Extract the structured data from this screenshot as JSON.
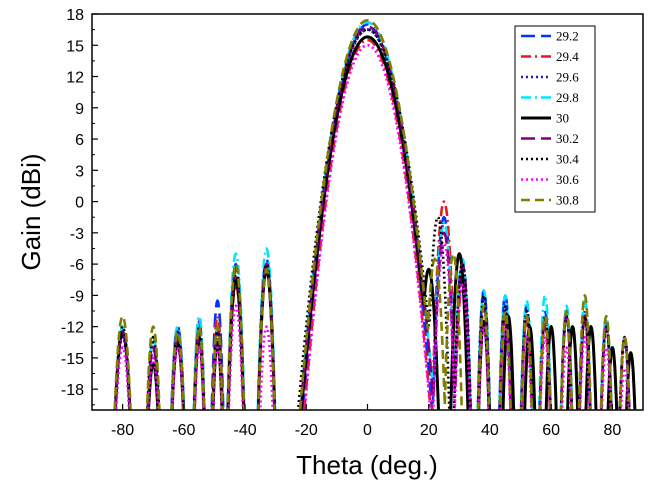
{
  "chart_data": {
    "type": "line",
    "title": "",
    "xlabel": "Theta (deg.)",
    "ylabel": "Gain (dBi)",
    "xlim": [
      -90,
      90
    ],
    "ylim": [
      -20,
      18
    ],
    "xticks": [
      -80,
      -60,
      -40,
      -20,
      0,
      20,
      40,
      60,
      80
    ],
    "yticks": [
      18,
      15,
      12,
      9,
      6,
      3,
      0,
      -3,
      -6,
      -9,
      -12,
      -15,
      -18
    ],
    "grid": false,
    "legend_position": "top-right",
    "series": [
      {
        "name": "29.2",
        "color": "#0033ff",
        "dash": "long-dash",
        "peak": 17.0,
        "beamwidth": 12,
        "sidelobes": [
          [
            -80,
            -12.5,
            3
          ],
          [
            -70,
            -14,
            2.5
          ],
          [
            -62,
            -12,
            2.5
          ],
          [
            -55,
            -11.5,
            2
          ],
          [
            -49,
            -9.5,
            2
          ],
          [
            -43,
            -6,
            2.5
          ],
          [
            -33,
            -5.5,
            2.5
          ],
          [
            25,
            -1.5,
            3
          ],
          [
            31,
            -7,
            2.5
          ],
          [
            38,
            -8.5,
            2
          ],
          [
            45,
            -9,
            2
          ],
          [
            52,
            -10,
            2
          ],
          [
            58,
            -10.5,
            2
          ],
          [
            65,
            -10.5,
            2
          ],
          [
            71,
            -11,
            2
          ],
          [
            78,
            -11.5,
            2
          ],
          [
            84,
            -13,
            2
          ]
        ]
      },
      {
        "name": "29.4",
        "color": "#e41a1c",
        "dash": "dash-dot",
        "peak": 15.5,
        "beamwidth": 12,
        "sidelobes": [
          [
            -80,
            -12,
            3
          ],
          [
            -70,
            -13,
            2.5
          ],
          [
            -62,
            -12,
            2.5
          ],
          [
            -55,
            -11,
            2
          ],
          [
            -49,
            -11,
            2
          ],
          [
            -43,
            -8,
            2.5
          ],
          [
            -33,
            -6,
            2.5
          ],
          [
            25,
            0,
            3
          ],
          [
            31,
            -8,
            2.5
          ],
          [
            38,
            -10,
            2
          ],
          [
            45,
            -11,
            2
          ],
          [
            52,
            -11.5,
            2
          ],
          [
            58,
            -12,
            2
          ],
          [
            65,
            -11,
            2
          ],
          [
            71,
            -11.5,
            2
          ],
          [
            78,
            -12,
            2
          ],
          [
            84,
            -13,
            2
          ]
        ]
      },
      {
        "name": "29.6",
        "color": "#1a1ad6",
        "dash": "dot",
        "peak": 16.5,
        "beamwidth": 12.5,
        "sidelobes": [
          [
            -80,
            -13,
            3
          ],
          [
            -70,
            -13.5,
            2.5
          ],
          [
            -62,
            -12.5,
            2.5
          ],
          [
            -55,
            -12,
            2
          ],
          [
            -49,
            -12,
            2
          ],
          [
            -43,
            -7.5,
            2.5
          ],
          [
            -33,
            -6.5,
            2.5
          ],
          [
            25,
            -2,
            3
          ],
          [
            31,
            -6,
            2.5
          ],
          [
            38,
            -9,
            2
          ],
          [
            45,
            -10,
            2
          ],
          [
            52,
            -10,
            2
          ],
          [
            58,
            -11,
            2
          ],
          [
            65,
            -11,
            2
          ],
          [
            71,
            -10.5,
            2
          ],
          [
            78,
            -12,
            2
          ],
          [
            84,
            -13.5,
            2
          ]
        ]
      },
      {
        "name": "29.8",
        "color": "#00e5ff",
        "dash": "dash-dot",
        "peak": 17.2,
        "beamwidth": 12.5,
        "sidelobes": [
          [
            -80,
            -12,
            3
          ],
          [
            -70,
            -13,
            2.5
          ],
          [
            -62,
            -12,
            2.5
          ],
          [
            -55,
            -11,
            2
          ],
          [
            -49,
            -12,
            2
          ],
          [
            -43,
            -5,
            2.5
          ],
          [
            -33,
            -4.5,
            2.5
          ],
          [
            25,
            -2,
            3
          ],
          [
            31,
            -5.5,
            2.5
          ],
          [
            38,
            -8.5,
            2
          ],
          [
            45,
            -9,
            2
          ],
          [
            52,
            -9.5,
            2
          ],
          [
            58,
            -9,
            2
          ],
          [
            65,
            -10,
            2
          ],
          [
            71,
            -9.5,
            2
          ],
          [
            78,
            -11,
            2
          ],
          [
            84,
            -13,
            2
          ]
        ]
      },
      {
        "name": "30",
        "color": "#000000",
        "dash": "solid",
        "peak": 15.8,
        "beamwidth": 12.5,
        "sidelobes": [
          [
            -80,
            -12.5,
            3
          ],
          [
            -70,
            -15.5,
            2.5
          ],
          [
            -62,
            -13.5,
            2.5
          ],
          [
            -55,
            -13,
            2
          ],
          [
            -49,
            -13.5,
            2
          ],
          [
            -43,
            -7.5,
            2.5
          ],
          [
            -33,
            -6.5,
            2.5
          ],
          [
            20,
            -6.5,
            3
          ],
          [
            30,
            -5,
            2.5
          ],
          [
            38,
            -11.5,
            2
          ],
          [
            46,
            -11,
            2
          ],
          [
            53,
            -12,
            2
          ],
          [
            60,
            -12,
            2
          ],
          [
            67,
            -12,
            2
          ],
          [
            73,
            -12,
            2
          ],
          [
            80,
            -14,
            2
          ],
          [
            86,
            -14.5,
            2
          ]
        ]
      },
      {
        "name": "30.2",
        "color": "#800080",
        "dash": "long-dash",
        "peak": 16.8,
        "beamwidth": 12.5,
        "sidelobes": [
          [
            -80,
            -12.5,
            3
          ],
          [
            -70,
            -14,
            2.5
          ],
          [
            -62,
            -13,
            2.5
          ],
          [
            -55,
            -12.5,
            2
          ],
          [
            -49,
            -12,
            2
          ],
          [
            -43,
            -6.5,
            2.5
          ],
          [
            -33,
            -6,
            2.5
          ],
          [
            25,
            -3,
            3
          ],
          [
            31,
            -6,
            2.5
          ],
          [
            38,
            -10,
            2
          ],
          [
            45,
            -10.5,
            2
          ],
          [
            52,
            -11,
            2
          ],
          [
            58,
            -11.5,
            2
          ],
          [
            65,
            -11,
            2
          ],
          [
            71,
            -11,
            2
          ],
          [
            78,
            -12,
            2
          ],
          [
            84,
            -13,
            2
          ]
        ]
      },
      {
        "name": "30.4",
        "color": "#000000",
        "dash": "dot",
        "peak": 16.5,
        "beamwidth": 13,
        "sidelobes": [
          [
            -80,
            -12,
            3
          ],
          [
            -70,
            -13,
            2.5
          ],
          [
            -62,
            -12.5,
            2.5
          ],
          [
            -55,
            -12,
            2
          ],
          [
            -49,
            -12.5,
            2
          ],
          [
            -43,
            -7,
            2.5
          ],
          [
            -33,
            -6,
            2.5
          ],
          [
            23,
            -1.5,
            3
          ],
          [
            31,
            -6,
            2.5
          ],
          [
            38,
            -9,
            2
          ],
          [
            45,
            -10,
            2
          ],
          [
            52,
            -10.5,
            2
          ],
          [
            58,
            -11,
            2
          ],
          [
            65,
            -11,
            2
          ],
          [
            71,
            -11,
            2
          ],
          [
            78,
            -12,
            2
          ],
          [
            84,
            -13,
            2
          ]
        ]
      },
      {
        "name": "30.6",
        "color": "#ff00ff",
        "dash": "dot",
        "peak": 15.0,
        "beamwidth": 12,
        "sidelobes": [
          [
            -80,
            -14,
            3
          ],
          [
            -70,
            -15,
            2.5
          ],
          [
            -62,
            -14,
            2.5
          ],
          [
            -55,
            -14,
            2
          ],
          [
            -49,
            -14,
            2
          ],
          [
            -43,
            -10,
            2.5
          ],
          [
            -33,
            -12,
            2.5
          ],
          [
            25,
            -4,
            3
          ],
          [
            31,
            -8,
            2.5
          ],
          [
            38,
            -12,
            2
          ],
          [
            45,
            -12,
            2
          ],
          [
            52,
            -13,
            2
          ],
          [
            58,
            -13,
            2
          ],
          [
            65,
            -14,
            2
          ],
          [
            71,
            -13,
            2
          ],
          [
            78,
            -14,
            2
          ],
          [
            84,
            -16,
            2
          ]
        ]
      },
      {
        "name": "30.8",
        "color": "#808000",
        "dash": "dash",
        "peak": 17.4,
        "beamwidth": 12.5,
        "sidelobes": [
          [
            -80,
            -11,
            3
          ],
          [
            -70,
            -12,
            2.5
          ],
          [
            -62,
            -12.5,
            2.5
          ],
          [
            -55,
            -12,
            2
          ],
          [
            -49,
            -12,
            2
          ],
          [
            -43,
            -6,
            2.5
          ],
          [
            -33,
            -6.5,
            2.5
          ],
          [
            22,
            -5.5,
            3
          ],
          [
            28,
            -5,
            2.5
          ],
          [
            38,
            -10,
            2
          ],
          [
            45,
            -10.5,
            2
          ],
          [
            52,
            -11,
            2
          ],
          [
            58,
            -11,
            2
          ],
          [
            65,
            -10.5,
            2
          ],
          [
            71,
            -9,
            2
          ],
          [
            78,
            -11,
            2
          ],
          [
            84,
            -13,
            2
          ]
        ]
      }
    ]
  }
}
